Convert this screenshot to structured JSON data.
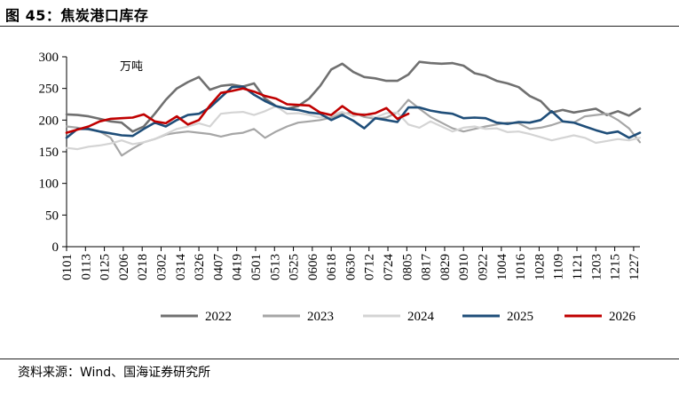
{
  "figure": {
    "title": "图 45：焦炭港口库存",
    "source": "资料来源：Wind、国海证券研究所"
  },
  "chart_data": {
    "type": "line",
    "unit": "万吨",
    "ylim": [
      0,
      300
    ],
    "yticks": [
      0,
      50,
      100,
      150,
      200,
      250,
      300
    ],
    "xticks": [
      "0101",
      "0113",
      "0125",
      "0206",
      "0218",
      "0302",
      "0314",
      "0326",
      "0407",
      "0419",
      "0501",
      "0513",
      "0525",
      "0606",
      "0618",
      "0630",
      "0712",
      "0724",
      "0805",
      "0817",
      "0829",
      "0910",
      "0922",
      "1004",
      "1016",
      "1028",
      "1109",
      "1121",
      "1203",
      "1215",
      "1227"
    ],
    "x_range": [
      "0101",
      "1231"
    ],
    "legend_position": "bottom",
    "grid": false,
    "series": [
      {
        "name": "2022",
        "color": "#707070",
        "width": 2.6,
        "points": [
          [
            "0101",
            209
          ],
          [
            "0108",
            208
          ],
          [
            "0115",
            206
          ],
          [
            "0122",
            202
          ],
          [
            "0129",
            198
          ],
          [
            "0205",
            196
          ],
          [
            "0212",
            182
          ],
          [
            "0219",
            190
          ],
          [
            "0226",
            210
          ],
          [
            "0305",
            232
          ],
          [
            "0312",
            250
          ],
          [
            "0319",
            260
          ],
          [
            "0326",
            268
          ],
          [
            "0402",
            248
          ],
          [
            "0409",
            254
          ],
          [
            "0416",
            256
          ],
          [
            "0423",
            253
          ],
          [
            "0430",
            258
          ],
          [
            "0507",
            234
          ],
          [
            "0514",
            222
          ],
          [
            "0521",
            218
          ],
          [
            "0528",
            222
          ],
          [
            "0604",
            234
          ],
          [
            "0611",
            254
          ],
          [
            "0618",
            280
          ],
          [
            "0625",
            289
          ],
          [
            "0702",
            276
          ],
          [
            "0709",
            268
          ],
          [
            "0716",
            266
          ],
          [
            "0723",
            262
          ],
          [
            "0730",
            262
          ],
          [
            "0806",
            272
          ],
          [
            "0813",
            292
          ],
          [
            "0820",
            290
          ],
          [
            "0827",
            289
          ],
          [
            "0903",
            290
          ],
          [
            "0910",
            286
          ],
          [
            "0917",
            274
          ],
          [
            "0924",
            270
          ],
          [
            "1001",
            262
          ],
          [
            "1008",
            258
          ],
          [
            "1015",
            252
          ],
          [
            "1022",
            238
          ],
          [
            "1029",
            230
          ],
          [
            "1105",
            212
          ],
          [
            "1112",
            216
          ],
          [
            "1119",
            212
          ],
          [
            "1126",
            215
          ],
          [
            "1203",
            218
          ],
          [
            "1210",
            208
          ],
          [
            "1217",
            214
          ],
          [
            "1224",
            207
          ],
          [
            "1231",
            218
          ]
        ]
      },
      {
        "name": "2023",
        "color": "#a6a6a6",
        "width": 2.2,
        "points": [
          [
            "0101",
            190
          ],
          [
            "0108",
            188
          ],
          [
            "0115",
            185
          ],
          [
            "0122",
            182
          ],
          [
            "0129",
            172
          ],
          [
            "0205",
            144
          ],
          [
            "0212",
            155
          ],
          [
            "0219",
            165
          ],
          [
            "0226",
            170
          ],
          [
            "0305",
            177
          ],
          [
            "0312",
            180
          ],
          [
            "0319",
            182
          ],
          [
            "0326",
            180
          ],
          [
            "0402",
            178
          ],
          [
            "0409",
            174
          ],
          [
            "0416",
            178
          ],
          [
            "0423",
            180
          ],
          [
            "0430",
            186
          ],
          [
            "0507",
            172
          ],
          [
            "0514",
            182
          ],
          [
            "0521",
            190
          ],
          [
            "0528",
            196
          ],
          [
            "0604",
            198
          ],
          [
            "0611",
            200
          ],
          [
            "0618",
            204
          ],
          [
            "0625",
            210
          ],
          [
            "0702",
            212
          ],
          [
            "0709",
            205
          ],
          [
            "0716",
            202
          ],
          [
            "0723",
            204
          ],
          [
            "0730",
            212
          ],
          [
            "0806",
            232
          ],
          [
            "0813",
            218
          ],
          [
            "0820",
            205
          ],
          [
            "0827",
            196
          ],
          [
            "0903",
            187
          ],
          [
            "0910",
            182
          ],
          [
            "0917",
            186
          ],
          [
            "0924",
            190
          ],
          [
            "1001",
            193
          ],
          [
            "1008",
            196
          ],
          [
            "1015",
            195
          ],
          [
            "1022",
            186
          ],
          [
            "1029",
            188
          ],
          [
            "1105",
            192
          ],
          [
            "1112",
            198
          ],
          [
            "1119",
            196
          ],
          [
            "1126",
            206
          ],
          [
            "1203",
            208
          ],
          [
            "1210",
            210
          ],
          [
            "1217",
            200
          ],
          [
            "1224",
            187
          ],
          [
            "1231",
            165
          ]
        ]
      },
      {
        "name": "2024",
        "color": "#d4d4d4",
        "width": 2.2,
        "points": [
          [
            "0101",
            156
          ],
          [
            "0108",
            154
          ],
          [
            "0115",
            158
          ],
          [
            "0122",
            160
          ],
          [
            "0129",
            163
          ],
          [
            "0205",
            168
          ],
          [
            "0212",
            162
          ],
          [
            "0219",
            165
          ],
          [
            "0226",
            170
          ],
          [
            "0305",
            178
          ],
          [
            "0312",
            186
          ],
          [
            "0319",
            190
          ],
          [
            "0326",
            195
          ],
          [
            "0402",
            190
          ],
          [
            "0409",
            210
          ],
          [
            "0416",
            212
          ],
          [
            "0423",
            213
          ],
          [
            "0430",
            208
          ],
          [
            "0507",
            214
          ],
          [
            "0514",
            222
          ],
          [
            "0521",
            210
          ],
          [
            "0528",
            211
          ],
          [
            "0604",
            208
          ],
          [
            "0611",
            204
          ],
          [
            "0618",
            208
          ],
          [
            "0625",
            213
          ],
          [
            "0702",
            206
          ],
          [
            "0709",
            210
          ],
          [
            "0716",
            204
          ],
          [
            "0723",
            211
          ],
          [
            "0730",
            212
          ],
          [
            "0806",
            193
          ],
          [
            "0813",
            188
          ],
          [
            "0820",
            198
          ],
          [
            "0827",
            190
          ],
          [
            "0903",
            182
          ],
          [
            "0910",
            188
          ],
          [
            "0917",
            190
          ],
          [
            "0924",
            186
          ],
          [
            "1001",
            187
          ],
          [
            "1008",
            181
          ],
          [
            "1015",
            182
          ],
          [
            "1022",
            178
          ],
          [
            "1029",
            173
          ],
          [
            "1105",
            168
          ],
          [
            "1112",
            172
          ],
          [
            "1119",
            176
          ],
          [
            "1126",
            172
          ],
          [
            "1203",
            164
          ],
          [
            "1210",
            167
          ],
          [
            "1217",
            170
          ],
          [
            "1224",
            168
          ],
          [
            "1231",
            172
          ]
        ]
      },
      {
        "name": "2025",
        "color": "#1f4e79",
        "width": 2.6,
        "points": [
          [
            "0101",
            172
          ],
          [
            "0108",
            186
          ],
          [
            "0115",
            186
          ],
          [
            "0122",
            182
          ],
          [
            "0129",
            179
          ],
          [
            "0205",
            176
          ],
          [
            "0212",
            175
          ],
          [
            "0219",
            186
          ],
          [
            "0226",
            196
          ],
          [
            "0305",
            190
          ],
          [
            "0312",
            200
          ],
          [
            "0319",
            208
          ],
          [
            "0326",
            210
          ],
          [
            "0402",
            220
          ],
          [
            "0409",
            236
          ],
          [
            "0416",
            252
          ],
          [
            "0423",
            253
          ],
          [
            "0430",
            240
          ],
          [
            "0507",
            230
          ],
          [
            "0514",
            222
          ],
          [
            "0521",
            218
          ],
          [
            "0528",
            216
          ],
          [
            "0604",
            212
          ],
          [
            "0611",
            210
          ],
          [
            "0618",
            200
          ],
          [
            "0625",
            208
          ],
          [
            "0702",
            199
          ],
          [
            "0709",
            187
          ],
          [
            "0716",
            203
          ],
          [
            "0723",
            200
          ],
          [
            "0730",
            197
          ],
          [
            "0806",
            220
          ],
          [
            "0813",
            220
          ],
          [
            "0820",
            215
          ],
          [
            "0827",
            212
          ],
          [
            "0903",
            210
          ],
          [
            "0910",
            203
          ],
          [
            "0917",
            204
          ],
          [
            "0924",
            203
          ],
          [
            "1001",
            196
          ],
          [
            "1008",
            194
          ],
          [
            "1015",
            197
          ],
          [
            "1022",
            196
          ],
          [
            "1029",
            200
          ],
          [
            "1105",
            214
          ],
          [
            "1112",
            198
          ],
          [
            "1119",
            196
          ],
          [
            "1126",
            190
          ],
          [
            "1203",
            184
          ],
          [
            "1210",
            179
          ],
          [
            "1217",
            182
          ],
          [
            "1224",
            172
          ],
          [
            "1231",
            180
          ]
        ]
      },
      {
        "name": "2026",
        "color": "#c00000",
        "width": 2.6,
        "points": [
          [
            "0101",
            180
          ],
          [
            "0108",
            185
          ],
          [
            "0115",
            190
          ],
          [
            "0122",
            198
          ],
          [
            "0129",
            202
          ],
          [
            "0205",
            203
          ],
          [
            "0212",
            204
          ],
          [
            "0219",
            209
          ],
          [
            "0226",
            198
          ],
          [
            "0305",
            195
          ],
          [
            "0312",
            206
          ],
          [
            "0319",
            193
          ],
          [
            "0326",
            200
          ],
          [
            "0402",
            223
          ],
          [
            "0409",
            243
          ],
          [
            "0416",
            246
          ],
          [
            "0423",
            250
          ],
          [
            "0430",
            245
          ],
          [
            "0507",
            238
          ],
          [
            "0514",
            234
          ],
          [
            "0521",
            225
          ],
          [
            "0528",
            224
          ],
          [
            "0604",
            223
          ],
          [
            "0611",
            212
          ],
          [
            "0618",
            208
          ],
          [
            "0625",
            222
          ],
          [
            "0702",
            210
          ],
          [
            "0709",
            208
          ],
          [
            "0716",
            211
          ],
          [
            "0723",
            219
          ],
          [
            "0730",
            202
          ],
          [
            "0806",
            210
          ]
        ]
      }
    ]
  }
}
